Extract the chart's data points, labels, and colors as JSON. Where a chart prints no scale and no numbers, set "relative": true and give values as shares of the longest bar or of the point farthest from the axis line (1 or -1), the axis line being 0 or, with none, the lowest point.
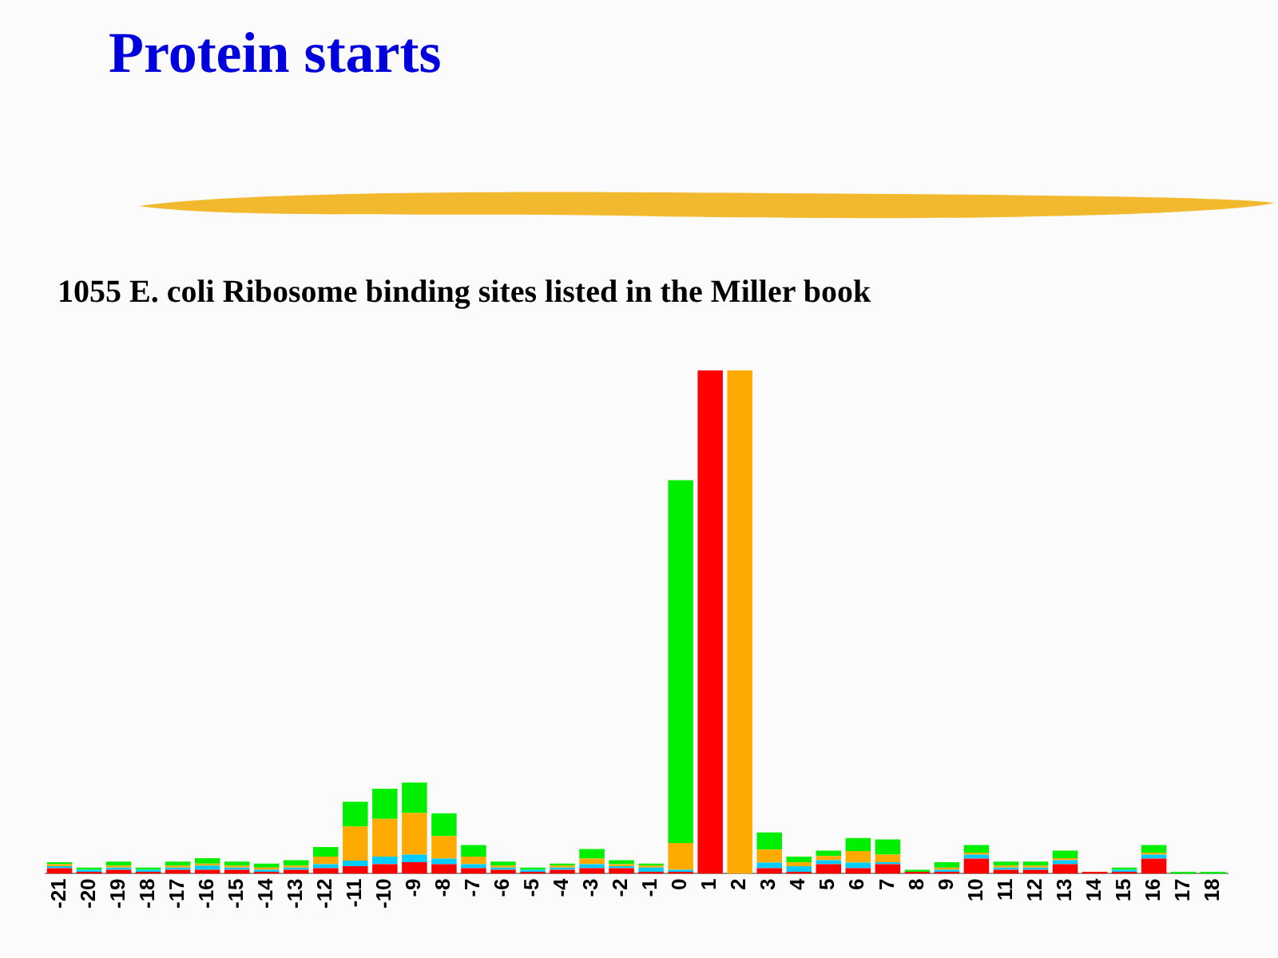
{
  "chart_data": {
    "type": "bar",
    "title": "Protein starts",
    "subtitle": "1055 E. coli Ribosome binding sites listed in the Miller book",
    "relative": true,
    "stacked": true,
    "grid": false,
    "legend": false,
    "categories": [
      "-21",
      "-20",
      "-19",
      "-18",
      "-17",
      "-16",
      "-15",
      "-14",
      "-13",
      "-12",
      "-11",
      "-10",
      "-9",
      "-8",
      "-7",
      "-6",
      "-5",
      "-4",
      "-3",
      "-2",
      "-1",
      "0",
      "1",
      "2",
      "3",
      "4",
      "5",
      "6",
      "7",
      "8",
      "9",
      "10",
      "11",
      "12",
      "13",
      "14",
      "15",
      "16",
      "17",
      "18"
    ],
    "series": [
      {
        "color": "#ff0000",
        "values": [
          0.011,
          0.004,
          0.008,
          0.004,
          0.008,
          0.008,
          0.008,
          0.004,
          0.008,
          0.011,
          0.015,
          0.019,
          0.023,
          0.019,
          0.011,
          0.008,
          0.004,
          0.008,
          0.011,
          0.011,
          0.004,
          0.004,
          1,
          0,
          0.011,
          0.004,
          0.019,
          0.011,
          0.019,
          0.004,
          0.004,
          0.03,
          0.008,
          0.008,
          0.019,
          0.004,
          0.004,
          0.03,
          0,
          0
        ]
      },
      {
        "color": "#00ccff",
        "values": [
          0.004,
          0.004,
          0.004,
          0.004,
          0.004,
          0.008,
          0.004,
          0.004,
          0.004,
          0.008,
          0.011,
          0.015,
          0.015,
          0.011,
          0.008,
          0.004,
          0.004,
          0.004,
          0.008,
          0.004,
          0.008,
          0.004,
          0,
          0,
          0.011,
          0.011,
          0.008,
          0.011,
          0.004,
          0,
          0.004,
          0.008,
          0.004,
          0.004,
          0.008,
          0,
          0.004,
          0.008,
          0,
          0
        ]
      },
      {
        "color": "#ffaa00",
        "values": [
          0.004,
          0,
          0.004,
          0,
          0.004,
          0.004,
          0.004,
          0.004,
          0.004,
          0.015,
          0.068,
          0.075,
          0.083,
          0.045,
          0.015,
          0.004,
          0,
          0.004,
          0.011,
          0.004,
          0.004,
          0.053,
          0,
          1,
          0.026,
          0.008,
          0.008,
          0.023,
          0.015,
          0,
          0.004,
          0.004,
          0.004,
          0.004,
          0.004,
          0,
          0,
          0.004,
          0,
          0
        ]
      },
      {
        "color": "#00ee00",
        "values": [
          0.004,
          0.004,
          0.008,
          0.004,
          0.008,
          0.011,
          0.008,
          0.008,
          0.011,
          0.019,
          0.049,
          0.06,
          0.06,
          0.045,
          0.023,
          0.008,
          0.004,
          0.004,
          0.019,
          0.008,
          0.004,
          0.721,
          0,
          0,
          0.034,
          0.011,
          0.011,
          0.026,
          0.03,
          0.004,
          0.011,
          0.015,
          0.008,
          0.008,
          0.015,
          0,
          0.004,
          0.015,
          0.004,
          0.004
        ]
      }
    ]
  }
}
